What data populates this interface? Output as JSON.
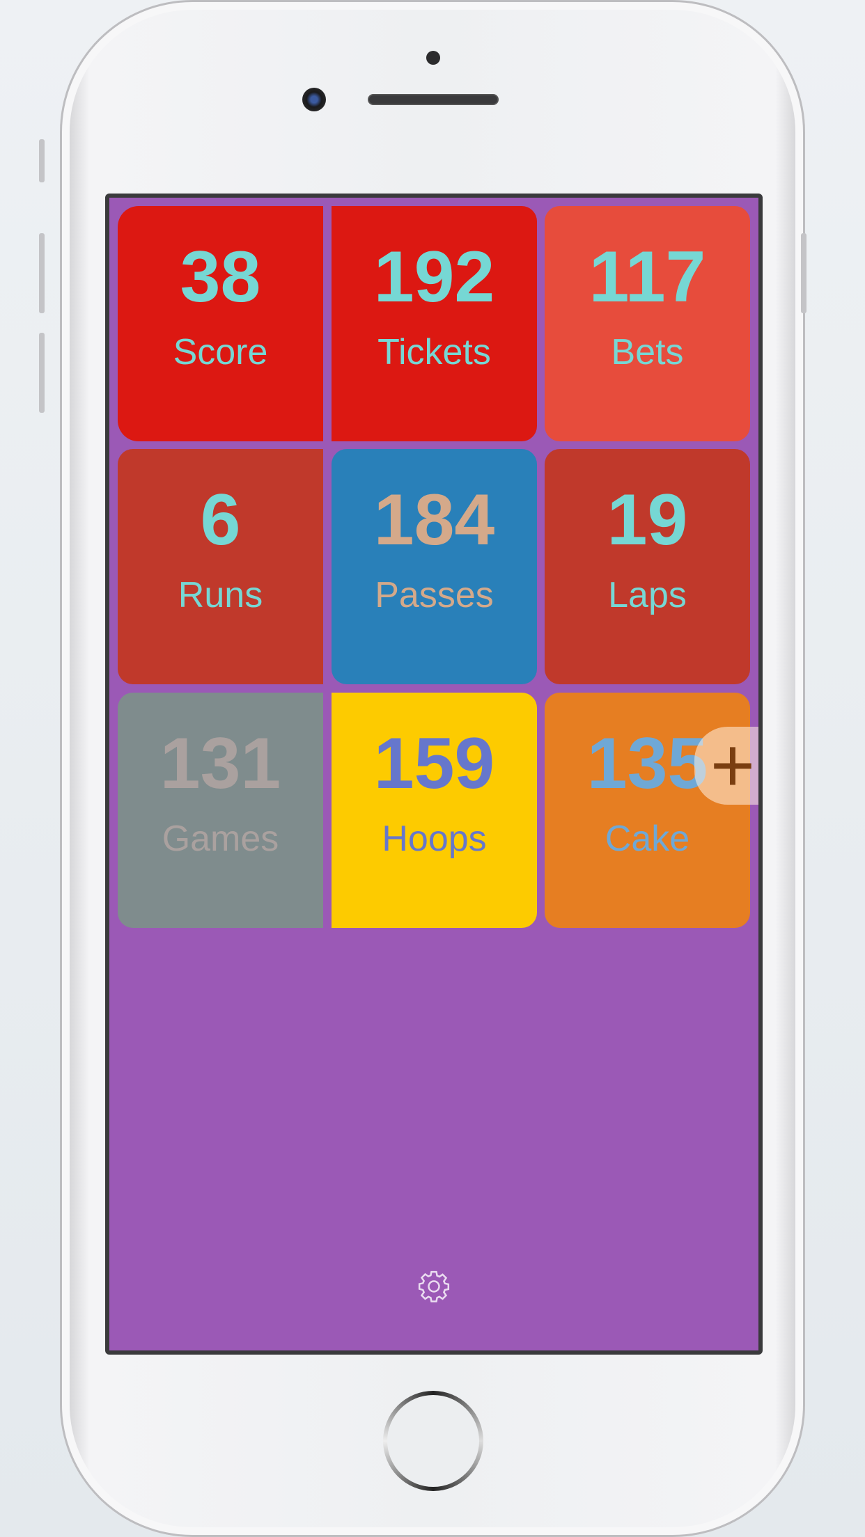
{
  "background_color": "#9b59b6",
  "tiles": [
    {
      "value": "38",
      "label": "Score",
      "bg": "#dc1812",
      "fg": "#76d7d4"
    },
    {
      "value": "192",
      "label": "Tickets",
      "bg": "#dc1812",
      "fg": "#76d7d4"
    },
    {
      "value": "117",
      "label": "Bets",
      "bg": "#e74c3c",
      "fg": "#76d7d4"
    },
    {
      "value": "6",
      "label": "Runs",
      "bg": "#c0392b",
      "fg": "#76d7d4"
    },
    {
      "value": "184",
      "label": "Passes",
      "bg": "#2980b9",
      "fg": "#d4a98a"
    },
    {
      "value": "19",
      "label": "Laps",
      "bg": "#c0392b",
      "fg": "#76d7d4"
    },
    {
      "value": "131",
      "label": "Games",
      "bg": "#7f8c8d",
      "fg": "#aaa19f"
    },
    {
      "value": "159",
      "label": "Hoops",
      "bg": "#fdcb00",
      "fg": "#6677cc"
    },
    {
      "value": "135",
      "label": "Cake",
      "bg": "#e67e22",
      "fg": "#6fa8d6"
    }
  ],
  "add_button": {
    "icon": "plus-icon",
    "label": "+"
  },
  "settings_button": {
    "icon": "gear-icon"
  }
}
